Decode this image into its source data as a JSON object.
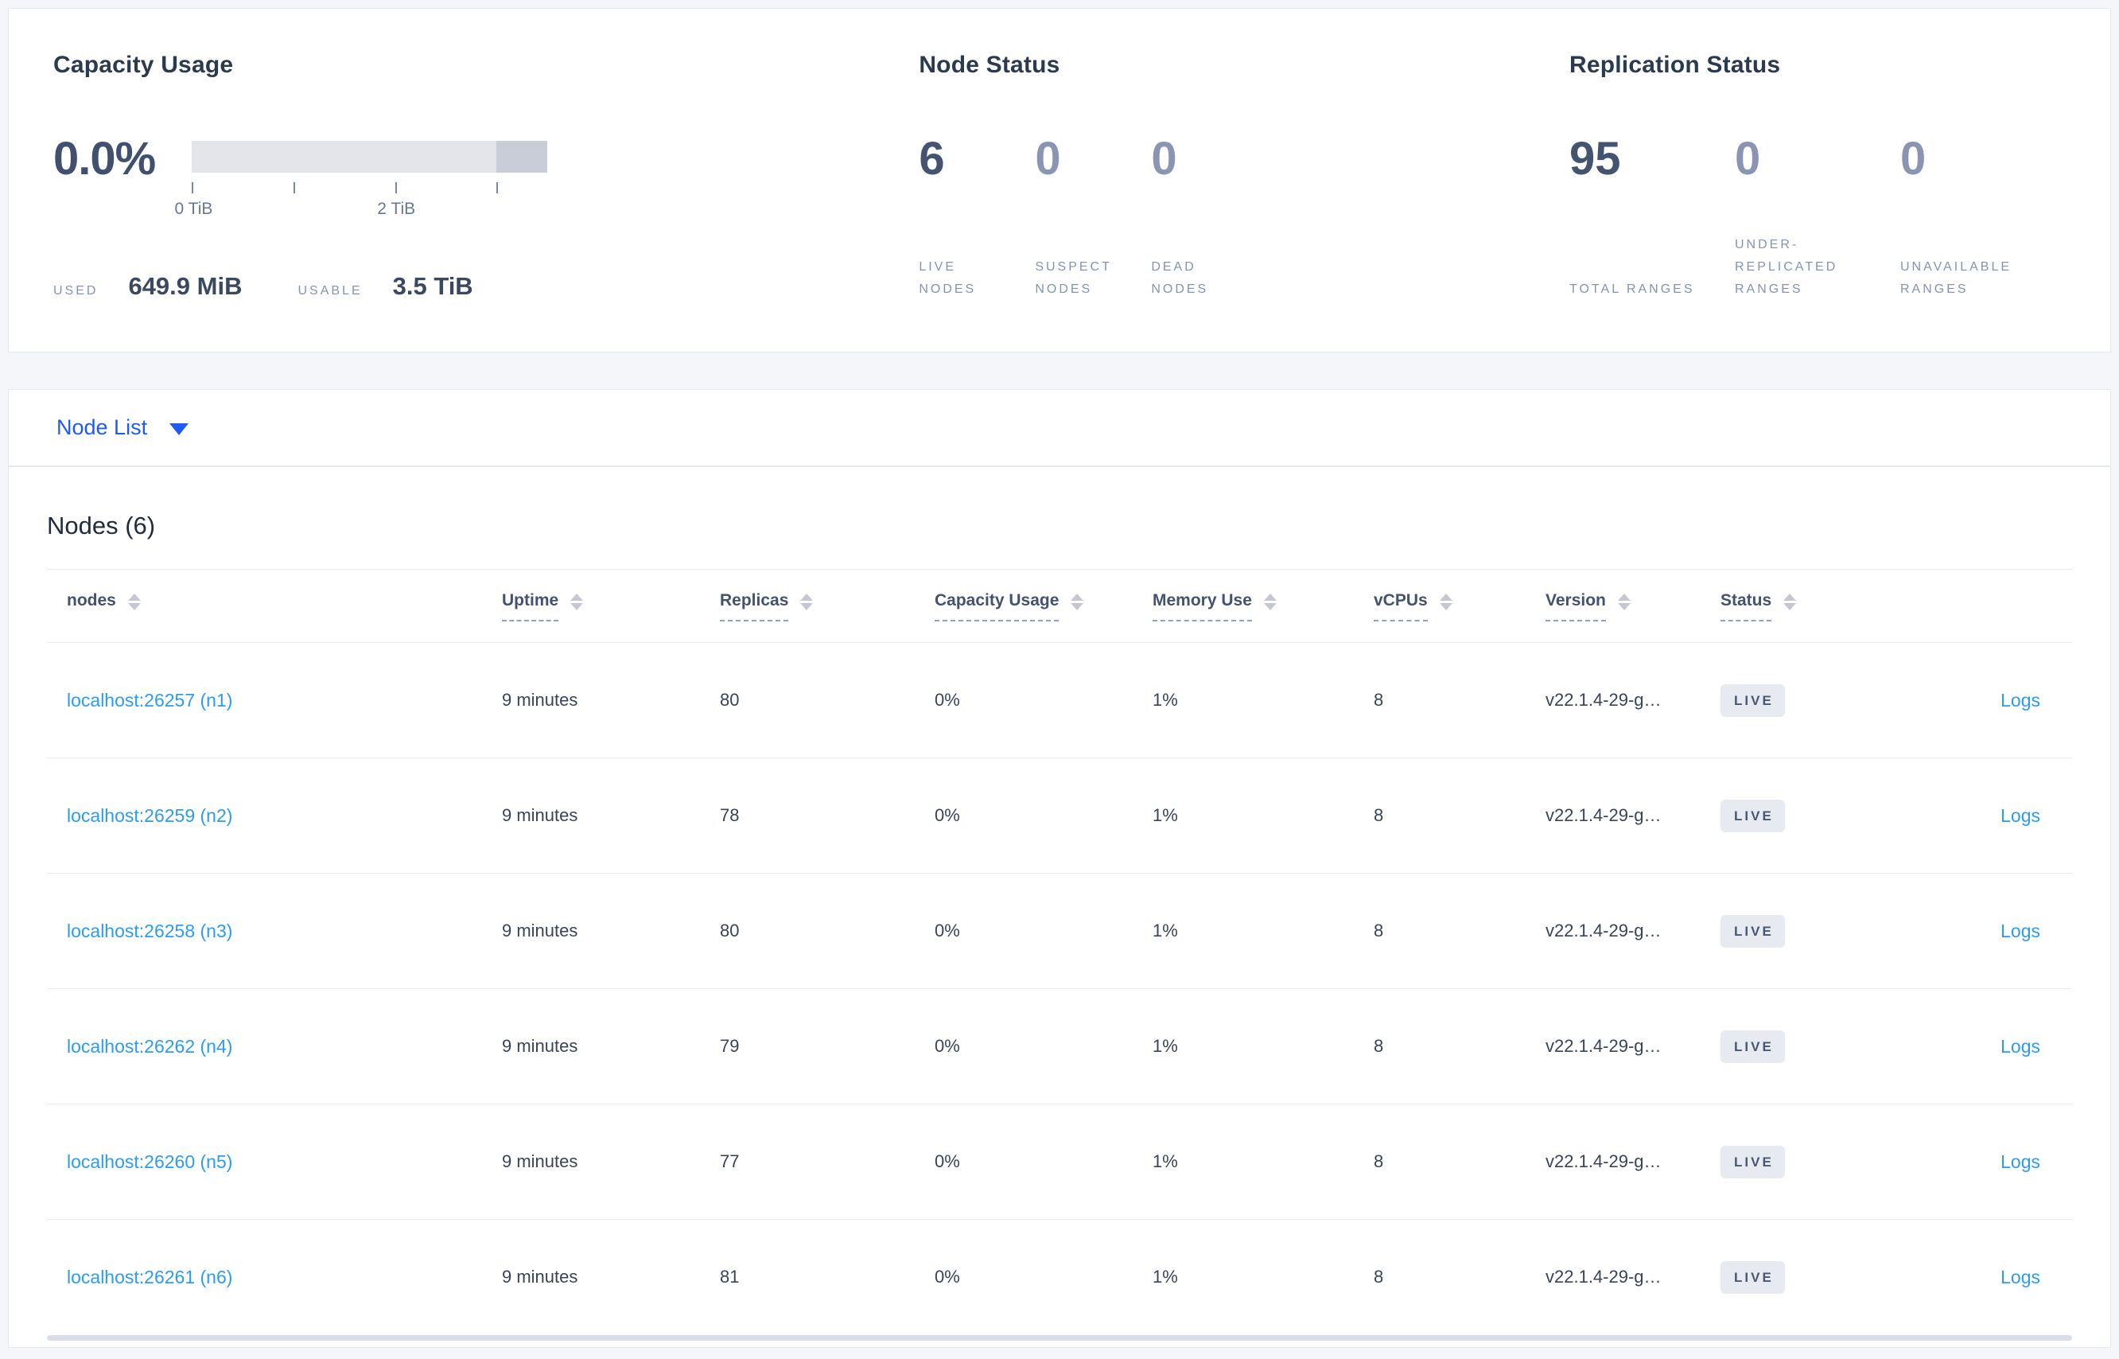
{
  "colors": {
    "page_background": "#f4f6fa",
    "accent_nav_blue": "#1e5af5",
    "link_blue": "#2b9cf4",
    "dark_stat": "#44536f",
    "muted_stat": "#8a95b3",
    "muted_label": "#8693b0",
    "badge_background": "#e7eaf1",
    "badge_text": "#475872",
    "bar_base": "#e3e5eb",
    "bar_overflow": "#c9cdd8"
  },
  "summary": {
    "capacity": {
      "title": "Capacity Usage",
      "percent": "0.0%",
      "tick_labels": [
        "0 TiB",
        "2 TiB"
      ],
      "used_label": "USED",
      "used_value": "649.9 MiB",
      "usable_label": "USABLE",
      "usable_value": "3.5 TiB"
    },
    "node_status": {
      "title": "Node Status",
      "stats": [
        {
          "value": "6",
          "label": "LIVE NODES"
        },
        {
          "value": "0",
          "label": "SUSPECT NODES"
        },
        {
          "value": "0",
          "label": "DEAD NODES"
        }
      ]
    },
    "replication_status": {
      "title": "Replication Status",
      "stats": [
        {
          "value": "95",
          "label": "TOTAL RANGES"
        },
        {
          "value": "0",
          "label": "UNDER-REPLICATED RANGES"
        },
        {
          "value": "0",
          "label": "UNAVAILABLE RANGES"
        }
      ]
    }
  },
  "nav": {
    "view_label": "Node List"
  },
  "nodes_panel": {
    "heading": "Nodes (6)",
    "logs_label": "Logs",
    "columns": [
      {
        "label": "nodes"
      },
      {
        "label": "Uptime"
      },
      {
        "label": "Replicas"
      },
      {
        "label": "Capacity Usage"
      },
      {
        "label": "Memory Use"
      },
      {
        "label": "vCPUs"
      },
      {
        "label": "Version"
      },
      {
        "label": "Status"
      }
    ],
    "rows": [
      {
        "name": "localhost:26257 (n1)",
        "uptime": "9 minutes",
        "replicas": "80",
        "capacity": "0%",
        "memory": "1%",
        "vcpus": "8",
        "version": "v22.1.4-29-g…",
        "status": "LIVE"
      },
      {
        "name": "localhost:26259 (n2)",
        "uptime": "9 minutes",
        "replicas": "78",
        "capacity": "0%",
        "memory": "1%",
        "vcpus": "8",
        "version": "v22.1.4-29-g…",
        "status": "LIVE"
      },
      {
        "name": "localhost:26258 (n3)",
        "uptime": "9 minutes",
        "replicas": "80",
        "capacity": "0%",
        "memory": "1%",
        "vcpus": "8",
        "version": "v22.1.4-29-g…",
        "status": "LIVE"
      },
      {
        "name": "localhost:26262 (n4)",
        "uptime": "9 minutes",
        "replicas": "79",
        "capacity": "0%",
        "memory": "1%",
        "vcpus": "8",
        "version": "v22.1.4-29-g…",
        "status": "LIVE"
      },
      {
        "name": "localhost:26260 (n5)",
        "uptime": "9 minutes",
        "replicas": "77",
        "capacity": "0%",
        "memory": "1%",
        "vcpus": "8",
        "version": "v22.1.4-29-g…",
        "status": "LIVE"
      },
      {
        "name": "localhost:26261 (n6)",
        "uptime": "9 minutes",
        "replicas": "81",
        "capacity": "0%",
        "memory": "1%",
        "vcpus": "8",
        "version": "v22.1.4-29-g…",
        "status": "LIVE"
      }
    ]
  }
}
